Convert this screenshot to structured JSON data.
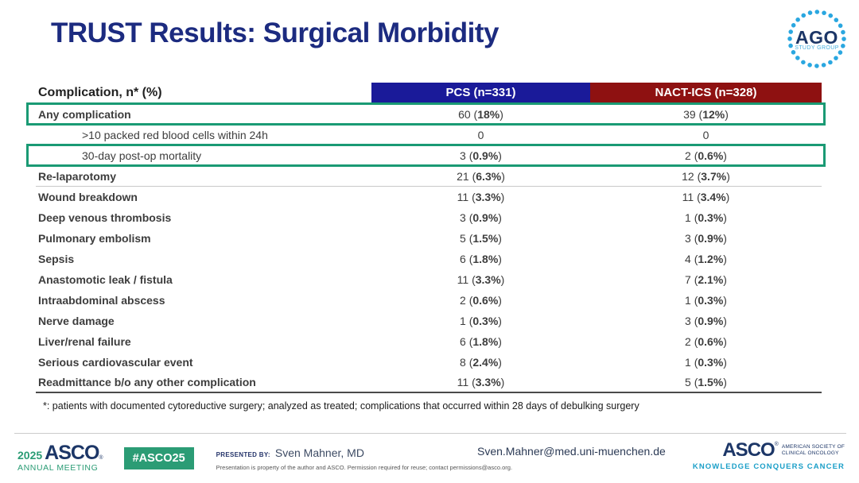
{
  "slide": {
    "title": "TRUST Results: Surgical Morbidity"
  },
  "logo_ago": {
    "name": "AGO",
    "subtitle": "STUDY GROUP"
  },
  "table": {
    "header": {
      "complication": "Complication, n* (%)",
      "pcs": "PCS (n=331)",
      "nact": "NACT-ICS (n=328)"
    },
    "rows": [
      {
        "label": "Any complication",
        "bold": true,
        "indent": false,
        "highlight": true,
        "pcs": {
          "pre": "60 (",
          "strong": "18%",
          "post": ")"
        },
        "nact": {
          "pre": "39 (",
          "strong": "12%",
          "post": ")"
        }
      },
      {
        "label": ">10 packed red blood cells within 24h",
        "bold": false,
        "indent": true,
        "pcs": {
          "pre": "0",
          "strong": "",
          "post": ""
        },
        "nact": {
          "pre": "0",
          "strong": "",
          "post": ""
        }
      },
      {
        "label": "30-day post-op mortality",
        "bold": false,
        "indent": true,
        "highlight": true,
        "pcs": {
          "pre": "3 (",
          "strong": "0.9%",
          "post": ")"
        },
        "nact": {
          "pre": "2 (",
          "strong": "0.6%",
          "post": ")"
        }
      },
      {
        "label": "Re-laparotomy",
        "bold": true,
        "sep": true,
        "pcs": {
          "pre": "21 (",
          "strong": "6.3%",
          "post": ")"
        },
        "nact": {
          "pre": "12 (",
          "strong": "3.7%",
          "post": ")"
        }
      },
      {
        "label": "Wound breakdown",
        "bold": true,
        "pcs": {
          "pre": "11 (",
          "strong": "3.3%",
          "post": ")"
        },
        "nact": {
          "pre": "11 (",
          "strong": "3.4%",
          "post": ")"
        }
      },
      {
        "label": "Deep venous thrombosis",
        "bold": true,
        "pcs": {
          "pre": "3 (",
          "strong": "0.9%",
          "post": ")"
        },
        "nact": {
          "pre": "1 (",
          "strong": "0.3%",
          "post": ")"
        }
      },
      {
        "label": "Pulmonary embolism",
        "bold": true,
        "pcs": {
          "pre": "5 (",
          "strong": "1.5%",
          "post": ")"
        },
        "nact": {
          "pre": "3 (",
          "strong": "0.9%",
          "post": ")"
        }
      },
      {
        "label": "Sepsis",
        "bold": true,
        "pcs": {
          "pre": "6 (",
          "strong": "1.8%",
          "post": ")"
        },
        "nact": {
          "pre": "4 (",
          "strong": "1.2%",
          "post": ")"
        }
      },
      {
        "label": "Anastomotic leak / fistula",
        "bold": true,
        "pcs": {
          "pre": "11 (",
          "strong": "3.3%",
          "post": ")"
        },
        "nact": {
          "pre": "7 (",
          "strong": "2.1%",
          "post": ")"
        }
      },
      {
        "label": "Intraabdominal abscess",
        "bold": true,
        "pcs": {
          "pre": "2 (",
          "strong": "0.6%",
          "post": ")"
        },
        "nact": {
          "pre": "1 (",
          "strong": "0.3%",
          "post": ")"
        }
      },
      {
        "label": "Nerve damage",
        "bold": true,
        "pcs": {
          "pre": "1 (",
          "strong": "0.3%",
          "post": ")"
        },
        "nact": {
          "pre": "3 (",
          "strong": "0.9%",
          "post": ")"
        }
      },
      {
        "label": "Liver/renal failure",
        "bold": true,
        "pcs": {
          "pre": "6 (",
          "strong": "1.8%",
          "post": ")"
        },
        "nact": {
          "pre": "2 (",
          "strong": "0.6%",
          "post": ")"
        }
      },
      {
        "label": "Serious cardiovascular event",
        "bold": true,
        "pcs": {
          "pre": "8 (",
          "strong": "2.4%",
          "post": ")"
        },
        "nact": {
          "pre": "1 (",
          "strong": "0.3%",
          "post": ")"
        }
      },
      {
        "label": "Readmittance b/o any other complication",
        "bold": true,
        "last": true,
        "pcs": {
          "pre": "11 (",
          "strong": "3.3%",
          "post": ")"
        },
        "nact": {
          "pre": "5 (",
          "strong": "1.5%",
          "post": ")"
        }
      }
    ],
    "footnote": "*: patients with documented cytoreductive surgery; analyzed as treated; complications that occurred within 28 days of debulking surgery"
  },
  "footer": {
    "year": "2025",
    "asco_word": "ASCO",
    "reg_mark": "®",
    "annual_meeting": "ANNUAL MEETING",
    "hashtag": "#ASCO25",
    "presented_by_label": "PRESENTED BY:",
    "presenter": "Sven Mahner, MD",
    "disclaimer": "Presentation is property of the author and ASCO. Permission required for reuse; contact permissions@asco.org.",
    "email": "Sven.Mahner@med.uni-muenchen.de",
    "society_line1": "AMERICAN SOCIETY OF",
    "society_line2": "CLINICAL ONCOLOGY",
    "tagline": "KNOWLEDGE CONQUERS CANCER"
  },
  "colors": {
    "title_navy": "#1c2b80",
    "pcs_bg": "#1a1a99",
    "nact_bg": "#8e1111",
    "highlight_border": "#1a9a74",
    "asco_green": "#2b9c75",
    "tagline_teal": "#1b9fc8",
    "ago_blue": "#2aa7e0"
  }
}
